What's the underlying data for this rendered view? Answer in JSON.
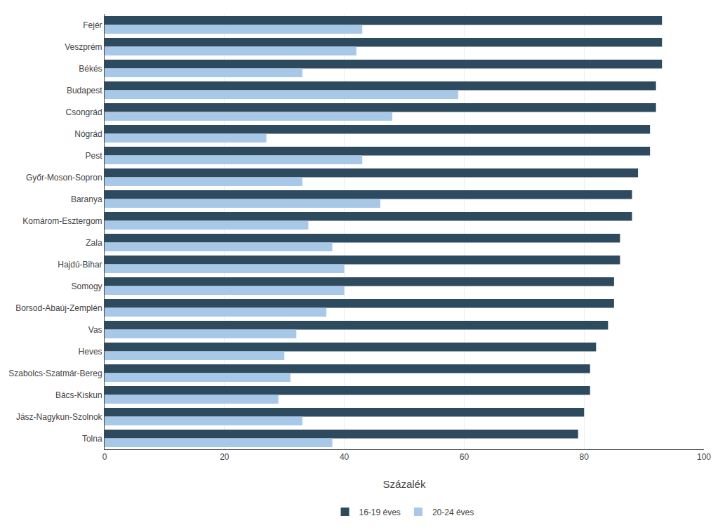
{
  "chart_data": {
    "type": "bar",
    "orientation": "horizontal",
    "categories": [
      "Fejér",
      "Veszprém",
      "Békés",
      "Budapest",
      "Csongrád",
      "Nógrád",
      "Pest",
      "Győr-Moson-Sopron",
      "Baranya",
      "Komárom-Esztergom",
      "Zala",
      "Hajdú-Bihar",
      "Somogy",
      "Borsod-Abaúj-Zemplén",
      "Vas",
      "Heves",
      "Szabolcs-Szatmár-Bereg",
      "Bács-Kiskun",
      "Jász-Nagykun-Szolnok",
      "Tolna"
    ],
    "series": [
      {
        "name": "16-19 éves",
        "color": "#2e4a5f",
        "values": [
          93,
          93,
          93,
          92,
          92,
          91,
          91,
          89,
          88,
          88,
          86,
          86,
          85,
          85,
          84,
          82,
          81,
          81,
          80,
          79
        ]
      },
      {
        "name": "20-24 éves",
        "color": "#a8c8e8",
        "values": [
          43,
          42,
          33,
          59,
          48,
          27,
          43,
          33,
          46,
          34,
          38,
          40,
          40,
          37,
          32,
          30,
          31,
          29,
          33,
          38
        ]
      }
    ],
    "xlabel": "Százalék",
    "xlim": [
      0,
      100
    ],
    "xticks": [
      0,
      20,
      40,
      60,
      80,
      100
    ],
    "grid": "x",
    "legend": "bottom"
  }
}
